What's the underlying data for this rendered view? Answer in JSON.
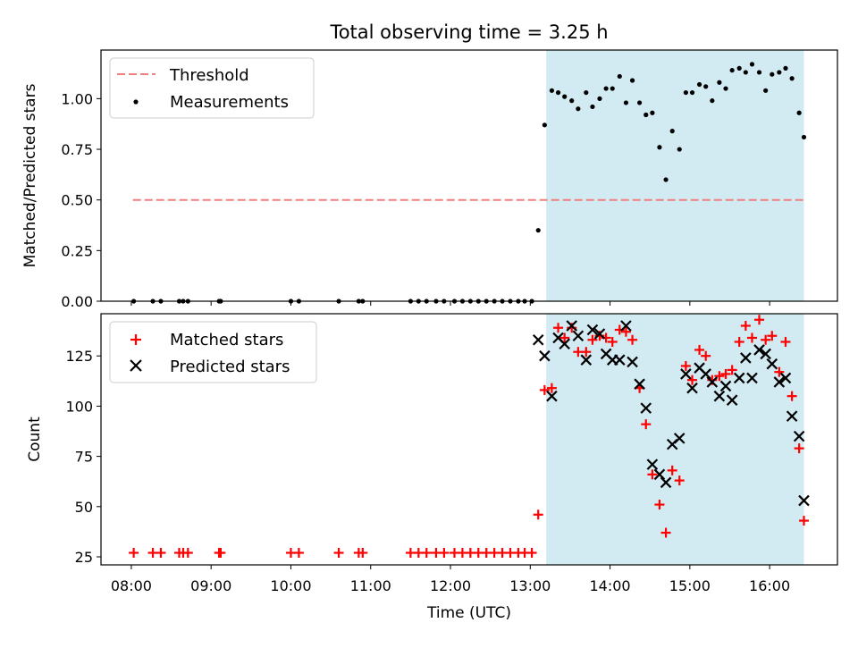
{
  "chart_data": [
    {
      "type": "scatter",
      "title": "Total observing time = 3.25 h",
      "xlabel": "",
      "ylabel": "Matched/Predicted stars",
      "xlim_hours": [
        7.62,
        16.85
      ],
      "ylim": [
        0,
        1.24
      ],
      "yticks": [
        0,
        0.25,
        0.5,
        0.75,
        1.0
      ],
      "ytick_labels": [
        "0.00",
        "0.25",
        "0.50",
        "0.75",
        "1.00"
      ],
      "shaded_interval_hours": [
        13.2,
        16.43
      ],
      "shaded_color": "#add8e6",
      "legend_position": "upper left",
      "threshold": {
        "name": "Threshold",
        "value": 0.5,
        "x_range_hours": [
          8.02,
          16.43
        ],
        "color": "#f08080",
        "style": "dashed"
      },
      "series": [
        {
          "name": "Measurements",
          "color": "#000000",
          "marker": "dot",
          "x": [
            8.03,
            8.27,
            8.37,
            8.6,
            8.65,
            8.71,
            9.1,
            9.12,
            10.0,
            10.1,
            10.6,
            10.85,
            10.9,
            11.5,
            11.6,
            11.7,
            11.82,
            11.92,
            12.05,
            12.15,
            12.25,
            12.35,
            12.45,
            12.55,
            12.65,
            12.75,
            12.85,
            12.93,
            13.02,
            13.1,
            13.18,
            13.27,
            13.35,
            13.43,
            13.52,
            13.6,
            13.7,
            13.78,
            13.87,
            13.95,
            14.03,
            14.12,
            14.2,
            14.28,
            14.37,
            14.45,
            14.53,
            14.62,
            14.7,
            14.78,
            14.87,
            14.95,
            15.03,
            15.12,
            15.2,
            15.28,
            15.37,
            15.45,
            15.53,
            15.62,
            15.7,
            15.78,
            15.87,
            15.95,
            16.03,
            16.12,
            16.2,
            16.28,
            16.37,
            16.43
          ],
          "y": [
            0,
            0,
            0,
            0,
            0,
            0,
            0,
            0,
            0,
            0,
            0,
            0,
            0,
            0,
            0,
            0,
            0,
            0,
            0,
            0,
            0,
            0,
            0,
            0,
            0,
            0,
            0,
            0,
            0,
            0.35,
            0.87,
            1.04,
            1.03,
            1.01,
            0.99,
            0.95,
            1.03,
            0.96,
            1.0,
            1.05,
            1.05,
            1.11,
            0.98,
            1.09,
            0.98,
            0.92,
            0.93,
            0.76,
            0.6,
            0.84,
            0.75,
            1.03,
            1.03,
            1.07,
            1.06,
            0.99,
            1.08,
            1.05,
            1.14,
            1.15,
            1.13,
            1.17,
            1.13,
            1.04,
            1.12,
            1.13,
            1.15,
            1.1,
            0.93,
            0.81
          ]
        }
      ]
    },
    {
      "type": "scatter",
      "title": "",
      "xlabel": "Time (UTC)",
      "ylabel": "Count",
      "xlim_hours": [
        7.62,
        16.85
      ],
      "ylim": [
        21,
        146
      ],
      "yticks": [
        25,
        50,
        75,
        100,
        125
      ],
      "ytick_labels": [
        "25",
        "50",
        "75",
        "100",
        "125"
      ],
      "xticks_hours": [
        8,
        9,
        10,
        11,
        12,
        13,
        14,
        15,
        16
      ],
      "xtick_labels": [
        "08:00",
        "09:00",
        "10:00",
        "11:00",
        "12:00",
        "13:00",
        "14:00",
        "15:00",
        "16:00"
      ],
      "shaded_interval_hours": [
        13.2,
        16.43
      ],
      "shaded_color": "#add8e6",
      "legend_position": "upper left",
      "series": [
        {
          "name": "Matched stars",
          "color": "#ff0000",
          "marker": "plus",
          "x": [
            8.03,
            8.27,
            8.37,
            8.6,
            8.65,
            8.71,
            9.1,
            9.12,
            10.0,
            10.1,
            10.6,
            10.85,
            10.9,
            11.5,
            11.6,
            11.7,
            11.82,
            11.92,
            12.05,
            12.15,
            12.25,
            12.35,
            12.45,
            12.55,
            12.65,
            12.75,
            12.85,
            12.93,
            13.02,
            13.1,
            13.18,
            13.27,
            13.35,
            13.43,
            13.52,
            13.6,
            13.7,
            13.78,
            13.87,
            13.95,
            14.03,
            14.12,
            14.2,
            14.28,
            14.37,
            14.45,
            14.53,
            14.62,
            14.7,
            14.78,
            14.87,
            14.95,
            15.03,
            15.12,
            15.2,
            15.28,
            15.37,
            15.45,
            15.53,
            15.62,
            15.7,
            15.78,
            15.87,
            15.95,
            16.03,
            16.12,
            16.2,
            16.28,
            16.37,
            16.43
          ],
          "y": [
            27,
            27,
            27,
            27,
            27,
            27,
            27,
            27,
            27,
            27,
            27,
            27,
            27,
            27,
            27,
            27,
            27,
            27,
            27,
            27,
            27,
            27,
            27,
            27,
            27,
            27,
            27,
            27,
            27,
            46,
            108,
            109,
            139,
            134,
            139,
            127,
            127,
            133,
            135,
            134,
            132,
            138,
            137,
            133,
            109,
            91,
            66,
            51,
            37,
            68,
            63,
            120,
            113,
            128,
            125,
            113,
            115,
            116,
            118,
            132,
            140,
            134,
            143,
            133,
            135,
            117,
            132,
            105,
            79,
            43
          ]
        },
        {
          "name": "Predicted stars",
          "color": "#000000",
          "marker": "x",
          "x": [
            13.1,
            13.18,
            13.27,
            13.35,
            13.43,
            13.52,
            13.6,
            13.7,
            13.78,
            13.87,
            13.95,
            14.03,
            14.12,
            14.2,
            14.28,
            14.37,
            14.45,
            14.53,
            14.62,
            14.7,
            14.78,
            14.87,
            14.95,
            15.03,
            15.12,
            15.2,
            15.28,
            15.37,
            15.45,
            15.53,
            15.62,
            15.7,
            15.78,
            15.87,
            15.95,
            16.03,
            16.12,
            16.2,
            16.28,
            16.37,
            16.43
          ],
          "y": [
            133,
            125,
            105,
            134,
            131,
            140,
            135,
            123,
            138,
            136,
            126,
            123,
            123,
            140,
            122,
            111,
            99,
            71,
            66,
            62,
            81,
            84,
            116,
            109,
            119,
            116,
            112,
            105,
            110,
            103,
            114,
            124,
            114,
            128,
            126,
            121,
            112,
            114,
            95,
            85,
            53
          ]
        }
      ]
    }
  ]
}
